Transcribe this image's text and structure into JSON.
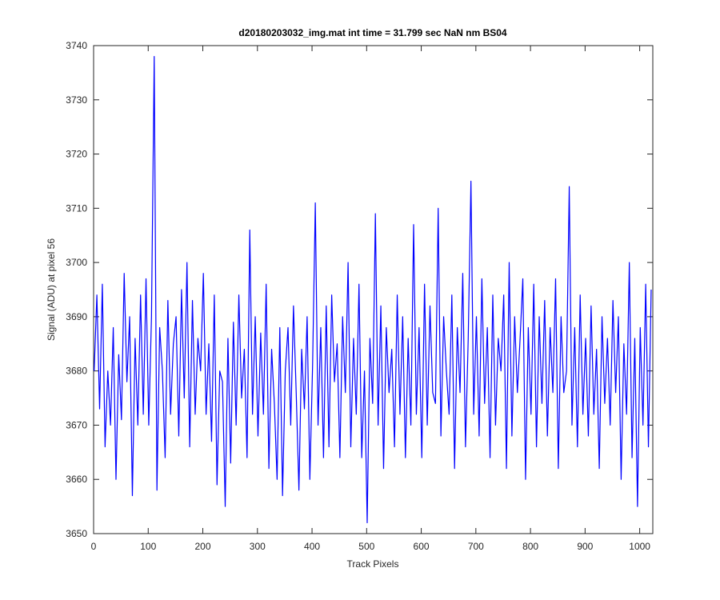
{
  "chart_data": {
    "type": "line",
    "title": "d20180203032_img.mat int time = 31.799 sec  NaN nm BS04",
    "xlabel": "Track Pixels",
    "ylabel": "Signal (ADU) at pixel 56",
    "xlim": [
      0,
      1024
    ],
    "ylim": [
      3650,
      3740
    ],
    "xticks": [
      0,
      100,
      200,
      300,
      400,
      500,
      600,
      700,
      800,
      900,
      1000
    ],
    "yticks": [
      3650,
      3660,
      3670,
      3680,
      3690,
      3700,
      3710,
      3720,
      3730,
      3740
    ],
    "x": [
      1,
      6,
      11,
      16,
      21,
      26,
      31,
      36,
      41,
      46,
      51,
      56,
      61,
      66,
      71,
      76,
      81,
      86,
      91,
      96,
      101,
      106,
      111,
      116,
      121,
      126,
      131,
      136,
      141,
      146,
      151,
      156,
      161,
      166,
      171,
      176,
      181,
      186,
      191,
      196,
      201,
      206,
      211,
      216,
      221,
      226,
      231,
      236,
      241,
      246,
      251,
      256,
      261,
      266,
      271,
      276,
      281,
      286,
      291,
      296,
      301,
      306,
      311,
      316,
      321,
      326,
      331,
      336,
      341,
      346,
      351,
      356,
      361,
      366,
      371,
      376,
      381,
      386,
      391,
      396,
      401,
      406,
      411,
      416,
      421,
      426,
      431,
      436,
      441,
      446,
      451,
      456,
      461,
      466,
      471,
      476,
      481,
      486,
      491,
      496,
      501,
      506,
      511,
      516,
      521,
      526,
      531,
      536,
      541,
      546,
      551,
      556,
      561,
      566,
      571,
      576,
      581,
      586,
      591,
      596,
      601,
      606,
      611,
      616,
      621,
      626,
      631,
      636,
      641,
      646,
      651,
      656,
      661,
      666,
      671,
      676,
      681,
      686,
      691,
      696,
      701,
      706,
      711,
      716,
      721,
      726,
      731,
      736,
      741,
      746,
      751,
      756,
      761,
      766,
      771,
      776,
      781,
      786,
      791,
      796,
      801,
      806,
      811,
      816,
      821,
      826,
      831,
      836,
      841,
      846,
      851,
      856,
      861,
      866,
      871,
      876,
      881,
      886,
      891,
      896,
      901,
      906,
      911,
      916,
      921,
      926,
      931,
      936,
      941,
      946,
      951,
      956,
      961,
      966,
      971,
      976,
      981,
      986,
      991,
      996,
      1001,
      1006,
      1011,
      1016,
      1021
    ],
    "series": [
      {
        "color": "#0000ff",
        "values": [
          3680,
          3694,
          3673,
          3696,
          3666,
          3680,
          3670,
          3688,
          3660,
          3683,
          3671,
          3698,
          3678,
          3690,
          3657,
          3686,
          3670,
          3694,
          3672,
          3697,
          3670,
          3690,
          3738,
          3658,
          3688,
          3680,
          3664,
          3693,
          3672,
          3685,
          3690,
          3668,
          3695,
          3675,
          3700,
          3666,
          3693,
          3672,
          3686,
          3680,
          3698,
          3672,
          3685,
          3667,
          3694,
          3659,
          3680,
          3678,
          3655,
          3686,
          3663,
          3689,
          3670,
          3694,
          3675,
          3684,
          3664,
          3706,
          3672,
          3690,
          3668,
          3687,
          3672,
          3696,
          3662,
          3684,
          3674,
          3660,
          3688,
          3657,
          3680,
          3688,
          3670,
          3692,
          3676,
          3658,
          3684,
          3673,
          3690,
          3660,
          3681,
          3711,
          3670,
          3688,
          3664,
          3692,
          3666,
          3694,
          3678,
          3685,
          3664,
          3690,
          3676,
          3700,
          3666,
          3686,
          3672,
          3696,
          3664,
          3680,
          3652,
          3686,
          3674,
          3709,
          3670,
          3692,
          3662,
          3688,
          3676,
          3684,
          3666,
          3694,
          3672,
          3690,
          3664,
          3686,
          3670,
          3707,
          3672,
          3688,
          3664,
          3696,
          3670,
          3692,
          3676,
          3674,
          3710,
          3668,
          3690,
          3680,
          3672,
          3694,
          3662,
          3688,
          3676,
          3698,
          3666,
          3686,
          3715,
          3672,
          3690,
          3668,
          3697,
          3674,
          3688,
          3664,
          3694,
          3670,
          3686,
          3680,
          3694,
          3662,
          3700,
          3668,
          3690,
          3676,
          3686,
          3697,
          3660,
          3688,
          3672,
          3696,
          3666,
          3690,
          3674,
          3693,
          3668,
          3688,
          3676,
          3697,
          3662,
          3690,
          3676,
          3680,
          3714,
          3670,
          3688,
          3666,
          3694,
          3672,
          3686,
          3668,
          3692,
          3672,
          3684,
          3662,
          3690,
          3674,
          3686,
          3670,
          3693,
          3676,
          3690,
          3660,
          3685,
          3672,
          3700,
          3664,
          3686,
          3655,
          3688,
          3670,
          3696,
          3666,
          3695
        ]
      }
    ]
  }
}
